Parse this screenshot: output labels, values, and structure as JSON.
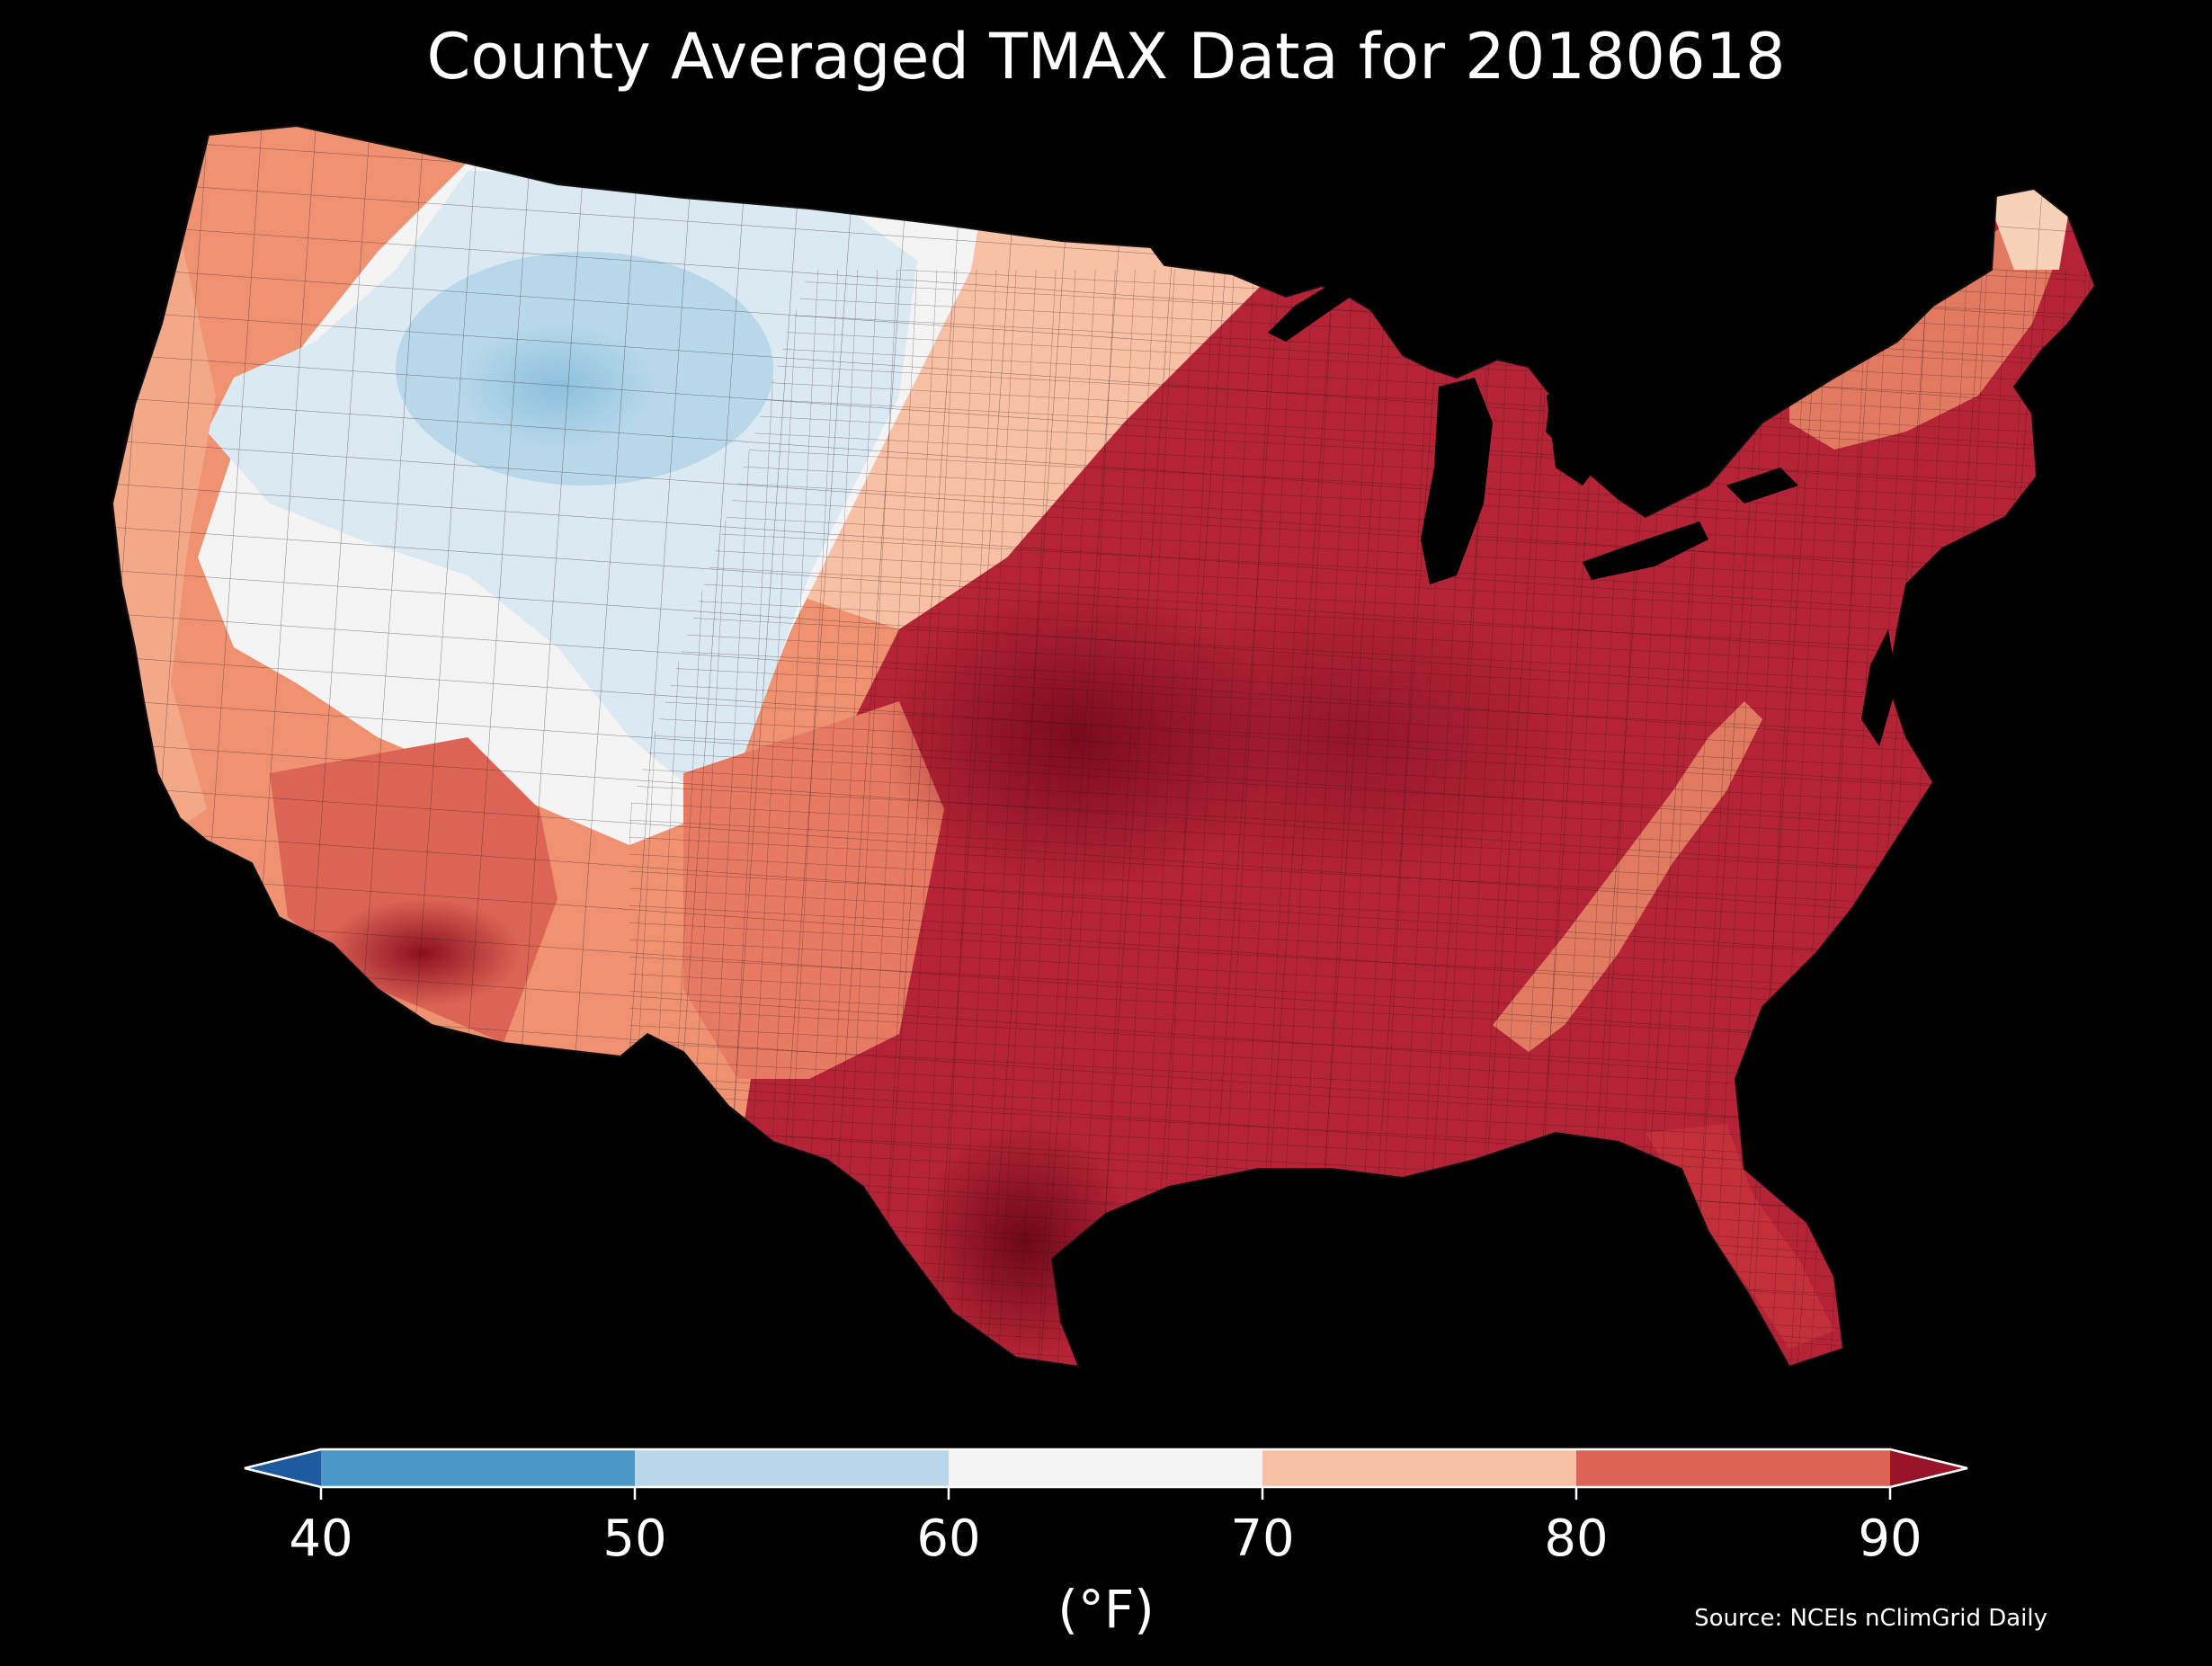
{
  "title": "County Averaged TMAX Data for 20180618",
  "colorbar": {
    "unit_label": "(°F)",
    "ticks": [
      "40",
      "50",
      "60",
      "70",
      "80",
      "90"
    ],
    "bins": [
      {
        "range": "<40",
        "color": "#1e5aa0"
      },
      {
        "range": "40-50",
        "color": "#4a98c8"
      },
      {
        "range": "50-60",
        "color": "#b8d8ea"
      },
      {
        "range": "60-70",
        "color": "#f4f4f4"
      },
      {
        "range": "70-80",
        "color": "#f8c0a4"
      },
      {
        "range": "80-90",
        "color": "#dc6454"
      },
      {
        "range": ">90",
        "color": "#9a1428"
      }
    ],
    "extend": "both"
  },
  "source": "Source: NCEIs nClimGrid Daily",
  "map": {
    "region": "Contiguous United States",
    "variable": "TMAX",
    "aggregation": "county average",
    "background": "#000000",
    "palette": {
      "hottest": "#7a0a1e",
      "very_hot": "#a8182c",
      "hot": "#c4303a",
      "warm": "#dc6454",
      "mild_warm": "#ee9272",
      "pale_warm": "#f8c0a4",
      "neutral": "#f4f4f4",
      "pale_cool": "#dbe9f2",
      "cool": "#b8d8ea",
      "cooler": "#8cc0dd"
    }
  }
}
